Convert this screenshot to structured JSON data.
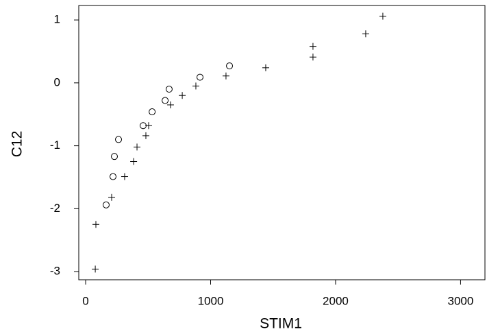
{
  "chart_data": {
    "type": "scatter",
    "x_label": "STIM1",
    "y_label": "C12",
    "xlim": [
      -55,
      3195
    ],
    "ylim": [
      -3.13,
      1.23
    ],
    "xticks": [
      0,
      1000,
      2000,
      3000
    ],
    "yticks": [
      -3,
      -2,
      -1,
      0,
      1
    ],
    "series": [
      {
        "marker": "plus",
        "color": "#000000",
        "x": [
          77,
          82,
          208,
          312,
          384,
          411,
          482,
          504,
          679,
          773,
          882,
          1123,
          1441,
          1819,
          1819,
          2241,
          2378
        ],
        "y": [
          -2.96,
          -2.25,
          -1.82,
          -1.49,
          -1.25,
          -1.02,
          -0.84,
          -0.68,
          -0.35,
          -0.2,
          -0.05,
          0.11,
          0.24,
          0.41,
          0.58,
          0.78,
          1.06
        ]
      },
      {
        "marker": "circle",
        "color": "#000000",
        "x": [
          164,
          219,
          230,
          263,
          460,
          532,
          636,
          668,
          915,
          1151
        ],
        "y": [
          -1.94,
          -1.49,
          -1.17,
          -0.9,
          -0.68,
          -0.46,
          -0.28,
          -0.1,
          0.09,
          0.27
        ]
      }
    ]
  }
}
